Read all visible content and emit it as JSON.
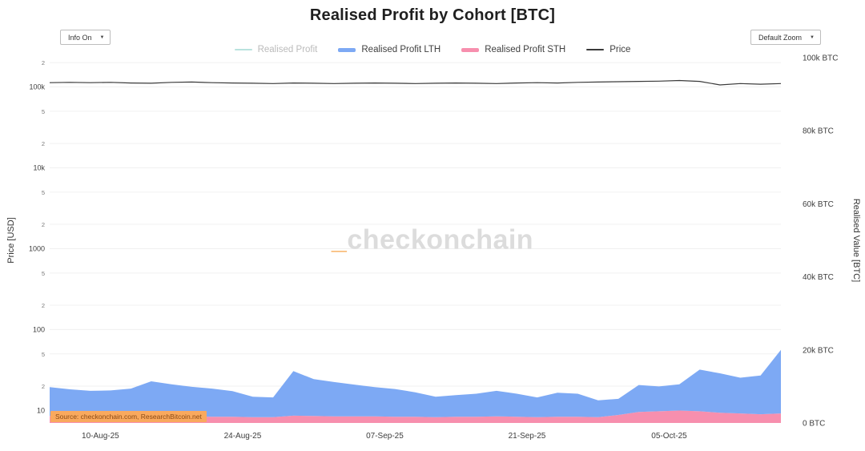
{
  "header": {
    "title": "Realised Profit by Cohort [BTC]"
  },
  "controls": {
    "info_toggle": {
      "label": "Info On",
      "arrow": "▼"
    },
    "zoom_select": {
      "label": "Default Zoom",
      "arrow": "▼"
    }
  },
  "legend": {
    "items": [
      {
        "label": "Realised Profit",
        "swatch_color": "#b9e2de",
        "text_color": "#bbbbbb",
        "weight": "thin",
        "active": false
      },
      {
        "label": "Realised Profit LTH",
        "swatch_color": "#7da9f4",
        "text_color": "#3f3f3f",
        "weight": "thick",
        "active": true
      },
      {
        "label": "Realised Profit STH",
        "swatch_color": "#f78fae",
        "text_color": "#3f3f3f",
        "weight": "thick",
        "active": true
      },
      {
        "label": "Price",
        "swatch_color": "#3a3a3a",
        "text_color": "#3f3f3f",
        "weight": "thin",
        "active": true
      }
    ]
  },
  "watermark": {
    "prefix": "_",
    "text": "checkonchain",
    "prefix_color": "#f7a54a",
    "text_color": "#dcdcdc"
  },
  "source_note": "Source: checkonchain.com, ResearchBitcoin.net",
  "chart_data": {
    "type": "area",
    "title": "Realised Profit by Cohort [BTC]",
    "grid": "horizontal",
    "legend_position": "top",
    "left_axis": {
      "title": "Price [USD]",
      "scale": "log",
      "domain": [
        7,
        230000
      ],
      "ticks": [
        {
          "value": 200000,
          "label": "2",
          "minor": true
        },
        {
          "value": 100000,
          "label": "100k",
          "minor": false
        },
        {
          "value": 50000,
          "label": "5",
          "minor": true
        },
        {
          "value": 20000,
          "label": "2",
          "minor": true
        },
        {
          "value": 10000,
          "label": "10k",
          "minor": false
        },
        {
          "value": 5000,
          "label": "5",
          "minor": true
        },
        {
          "value": 2000,
          "label": "2",
          "minor": true
        },
        {
          "value": 1000,
          "label": "1000",
          "minor": false
        },
        {
          "value": 500,
          "label": "5",
          "minor": true
        },
        {
          "value": 200,
          "label": "2",
          "minor": true
        },
        {
          "value": 100,
          "label": "100",
          "minor": false
        },
        {
          "value": 50,
          "label": "5",
          "minor": true
        },
        {
          "value": 20,
          "label": "2",
          "minor": true
        },
        {
          "value": 10,
          "label": "10",
          "minor": false
        }
      ]
    },
    "right_axis": {
      "title": "Realised Value [BTC]",
      "scale": "linear",
      "domain": [
        0,
        100000
      ],
      "ticks": [
        {
          "value": 100000,
          "label": "100k BTC"
        },
        {
          "value": 80000,
          "label": "80k BTC"
        },
        {
          "value": 60000,
          "label": "60k BTC"
        },
        {
          "value": 40000,
          "label": "40k BTC"
        },
        {
          "value": 20000,
          "label": "20k BTC"
        },
        {
          "value": 0,
          "label": "0 BTC"
        }
      ]
    },
    "x_axis": {
      "unit": "days",
      "domain": [
        0,
        72
      ],
      "ticks": [
        {
          "pos": 5,
          "label": "10-Aug-25"
        },
        {
          "pos": 19,
          "label": "24-Aug-25"
        },
        {
          "pos": 33,
          "label": "07-Sep-25"
        },
        {
          "pos": 47,
          "label": "21-Sep-25"
        },
        {
          "pos": 61,
          "label": "05-Oct-25"
        }
      ]
    },
    "x_days": [
      0,
      2,
      4,
      6,
      8,
      10,
      12,
      14,
      16,
      18,
      20,
      22,
      24,
      26,
      28,
      30,
      32,
      34,
      36,
      38,
      40,
      42,
      44,
      46,
      48,
      50,
      52,
      54,
      56,
      58,
      60,
      62,
      64,
      66,
      68,
      70,
      72
    ],
    "series": [
      {
        "name": "Realised Profit STH",
        "kind": "area",
        "axis": "right",
        "unit": "BTC",
        "color": "#f78fae",
        "values": [
          1900,
          1800,
          1800,
          1700,
          1800,
          1900,
          1800,
          1800,
          1700,
          1700,
          1600,
          1600,
          2000,
          1900,
          1800,
          1800,
          1800,
          1700,
          1700,
          1600,
          1700,
          1700,
          1800,
          1700,
          1600,
          1700,
          1700,
          1600,
          2200,
          3000,
          3200,
          3400,
          3200,
          2800,
          2600,
          2400,
          2600
        ]
      },
      {
        "name": "Realised Profit LTH",
        "kind": "area",
        "axis": "right",
        "unit": "BTC",
        "color": "#7da9f4",
        "stacked_on": "Realised Profit STH",
        "values": [
          7900,
          7400,
          7000,
          7200,
          7600,
          9500,
          8800,
          8100,
          7700,
          7000,
          5600,
          5400,
          12200,
          10100,
          9400,
          8700,
          8000,
          7600,
          6700,
          5600,
          5900,
          6300,
          7000,
          6300,
          5400,
          6600,
          6300,
          4600,
          4400,
          7400,
          6800,
          7200,
          11400,
          10800,
          9800,
          10600,
          17400
        ]
      },
      {
        "name": "Price",
        "kind": "line",
        "axis": "left",
        "unit": "USD",
        "color": "#3a3a3a",
        "values": [
          113000,
          114000,
          113000,
          114000,
          112000,
          111000,
          114000,
          115000,
          113000,
          112000,
          111000,
          110000,
          112000,
          111000,
          110000,
          111000,
          112000,
          111000,
          110000,
          111000,
          112000,
          111000,
          110000,
          112000,
          113000,
          112000,
          114000,
          115000,
          116000,
          117000,
          118000,
          120000,
          117000,
          106000,
          110000,
          108000,
          110000
        ]
      }
    ],
    "hidden_series": [
      {
        "name": "Realised Profit"
      }
    ]
  }
}
